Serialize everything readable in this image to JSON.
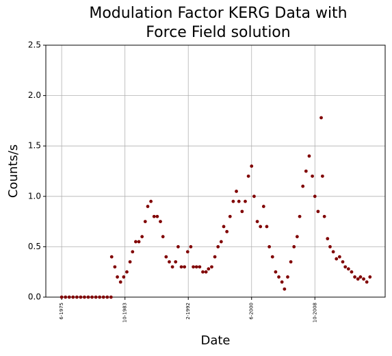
{
  "chart_data": {
    "type": "scatter",
    "title": "Modulation Factor KERG Data with Force Field solution",
    "x_label": "Date",
    "y_label": "Counts/s",
    "xlim": [
      "1973-05",
      "2018-01"
    ],
    "xticks": [
      {
        "value": "1975-06",
        "label": "6-1975"
      },
      {
        "value": "1983-10",
        "label": "10-1983"
      },
      {
        "value": "1992-02",
        "label": "2-1992"
      },
      {
        "value": "2000-06",
        "label": "6-2000"
      },
      {
        "value": "2008-10",
        "label": "10-2008"
      }
    ],
    "ylim": [
      0,
      2.5
    ],
    "yticks": [
      {
        "value": 0,
        "label": "0.0"
      },
      0.5,
      {
        "value": 1,
        "label": "1.0"
      },
      1.5,
      {
        "value": 2,
        "label": "2.0"
      },
      2.5
    ],
    "grid": true,
    "series": [
      {
        "color": "#800000",
        "x": [
          "1975-06",
          "1975-12",
          "1976-06",
          "1976-12",
          "1977-06",
          "1977-12",
          "1978-06",
          "1978-12",
          "1979-06",
          "1979-12",
          "1980-06",
          "1980-12",
          "1981-06",
          "1981-12",
          "1982-01",
          "1982-06",
          "1982-10",
          "1983-03",
          "1983-08",
          "1984-01",
          "1984-06",
          "1984-10",
          "1985-03",
          "1985-08",
          "1986-01",
          "1986-06",
          "1986-10",
          "1987-03",
          "1987-08",
          "1988-01",
          "1988-06",
          "1988-10",
          "1989-03",
          "1989-08",
          "1990-01",
          "1990-06",
          "1990-10",
          "1991-03",
          "1991-08",
          "1992-01",
          "1992-06",
          "1992-10",
          "1993-03",
          "1993-08",
          "1994-01",
          "1994-06",
          "1994-10",
          "1995-03",
          "1995-08",
          "1996-01",
          "1996-06",
          "1996-10",
          "1997-03",
          "1997-08",
          "1998-01",
          "1998-06",
          "1998-10",
          "1999-03",
          "1999-08",
          "2000-01",
          "2000-06",
          "2000-10",
          "2001-03",
          "2001-08",
          "2002-01",
          "2002-06",
          "2002-10",
          "2003-03",
          "2003-08",
          "2004-01",
          "2004-06",
          "2004-10",
          "2005-03",
          "2005-08",
          "2006-01",
          "2006-06",
          "2006-10",
          "2007-03",
          "2007-08",
          "2008-01",
          "2008-06",
          "2008-10",
          "2009-03",
          "2009-08",
          "2009-10",
          "2010-01",
          "2010-06",
          "2010-10",
          "2011-03",
          "2011-08",
          "2012-01",
          "2012-06",
          "2012-10",
          "2013-03",
          "2013-08",
          "2014-01",
          "2014-06",
          "2014-10",
          "2015-03",
          "2015-08",
          "2016-01"
        ],
        "values": [
          0,
          0,
          0,
          0,
          0,
          0,
          0,
          0,
          0,
          0,
          0,
          0,
          0,
          0,
          0.4,
          0.3,
          0.2,
          0.15,
          0.2,
          0.25,
          0.35,
          0.45,
          0.55,
          0.55,
          0.6,
          0.75,
          0.9,
          0.95,
          0.8,
          0.8,
          0.75,
          0.6,
          0.4,
          0.35,
          0.3,
          0.35,
          0.5,
          0.3,
          0.3,
          0.45,
          0.5,
          0.3,
          0.3,
          0.3,
          0.25,
          0.25,
          0.28,
          0.3,
          0.4,
          0.5,
          0.55,
          0.7,
          0.65,
          0.8,
          0.95,
          1.05,
          0.95,
          0.85,
          0.95,
          1.2,
          1.3,
          1.0,
          0.75,
          0.7,
          0.9,
          0.7,
          0.5,
          0.4,
          0.25,
          0.2,
          0.15,
          0.08,
          0.2,
          0.35,
          0.5,
          0.6,
          0.8,
          1.1,
          1.25,
          1.4,
          1.2,
          1.0,
          0.85,
          1.78,
          1.2,
          0.8,
          0.58,
          0.5,
          0.45,
          0.38,
          0.4,
          0.35,
          0.3,
          0.28,
          0.25,
          0.2,
          0.18,
          0.2,
          0.18,
          0.15,
          0.2
        ]
      }
    ]
  }
}
